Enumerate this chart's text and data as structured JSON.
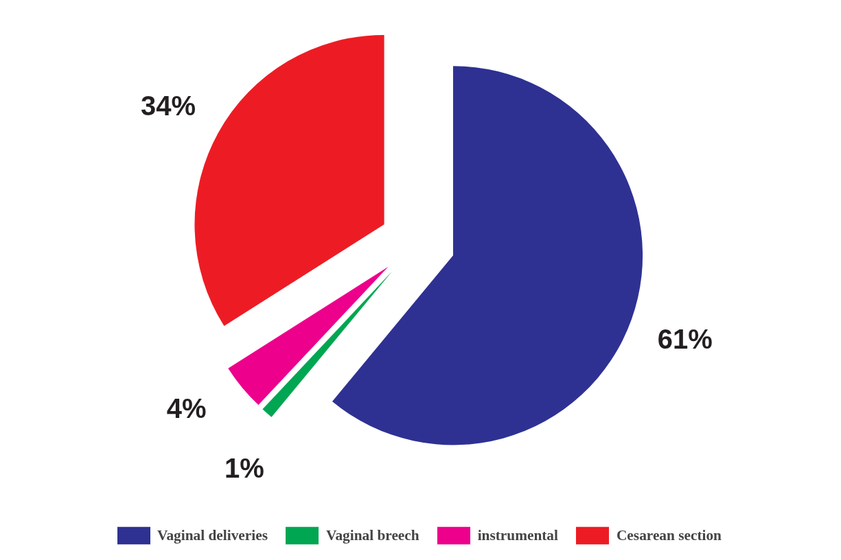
{
  "chart_data": {
    "type": "pie",
    "categories": [
      "Vaginal deliveries",
      "Vaginal breech",
      "instrumental",
      "Cesarean section"
    ],
    "values": [
      61,
      1,
      4,
      34
    ],
    "colors": [
      "#2e3192",
      "#00a651",
      "#ec008c",
      "#ed1c24"
    ],
    "value_labels": [
      "61%",
      "1%",
      "4%",
      "34%"
    ],
    "legend": "bottom"
  }
}
